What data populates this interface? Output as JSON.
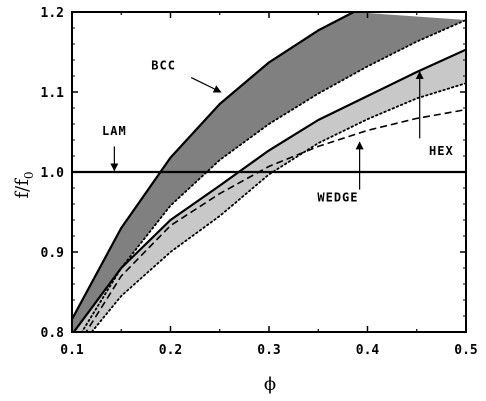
{
  "chart_data": {
    "type": "line",
    "xlabel": "ϕ",
    "ylabel_main": "f/f",
    "ylabel_sub": "0",
    "xlim": [
      0.1,
      0.5
    ],
    "ylim": [
      0.8,
      1.2
    ],
    "x_ticks": [
      0.1,
      0.2,
      0.3,
      0.4,
      0.5
    ],
    "x_tick_labels": [
      "0.1",
      "0.2",
      "0.3",
      "0.4",
      "0.5"
    ],
    "y_ticks": [
      0.8,
      0.9,
      1.0,
      1.1,
      1.2
    ],
    "y_tick_labels": [
      "0.8",
      "0.9",
      "1.0",
      "1.1",
      "1.2"
    ],
    "grid": false,
    "fill_colors": {
      "bcc": "#808080",
      "hex": "#c8c8c8"
    },
    "series": [
      {
        "key": "bcc_upper",
        "style": "solid",
        "x": [
          0.1,
          0.15,
          0.2,
          0.25,
          0.3,
          0.35,
          0.386
        ],
        "y": [
          0.816,
          0.93,
          1.018,
          1.085,
          1.137,
          1.177,
          1.2
        ]
      },
      {
        "key": "bcc_lower",
        "style": "dotted",
        "x": [
          0.1,
          0.15,
          0.2,
          0.25,
          0.3,
          0.35,
          0.4,
          0.45,
          0.5
        ],
        "y": [
          0.78,
          0.88,
          0.958,
          1.015,
          1.06,
          1.098,
          1.132,
          1.163,
          1.19
        ]
      },
      {
        "key": "hex_upper",
        "style": "solid",
        "x": [
          0.1,
          0.15,
          0.2,
          0.25,
          0.3,
          0.35,
          0.4,
          0.45,
          0.5
        ],
        "y": [
          0.797,
          0.88,
          0.94,
          0.983,
          1.027,
          1.065,
          1.095,
          1.125,
          1.153
        ]
      },
      {
        "key": "hex_lower",
        "style": "dotted",
        "x": [
          0.1,
          0.15,
          0.2,
          0.25,
          0.3,
          0.35,
          0.4,
          0.45,
          0.5
        ],
        "y": [
          0.77,
          0.845,
          0.9,
          0.945,
          0.997,
          1.036,
          1.066,
          1.092,
          1.111
        ]
      },
      {
        "key": "wedge",
        "style": "dashed",
        "x": [
          0.1,
          0.15,
          0.2,
          0.25,
          0.3,
          0.35,
          0.4,
          0.45,
          0.5
        ],
        "y": [
          0.772,
          0.87,
          0.933,
          0.973,
          1.007,
          1.032,
          1.052,
          1.067,
          1.078
        ]
      },
      {
        "key": "lam",
        "style": "solid",
        "x": [
          0.1,
          0.5
        ],
        "y": [
          1.0,
          1.0
        ]
      }
    ],
    "annotations": [
      {
        "key": "bcc",
        "text": "BCC",
        "label_at": [
          0.193,
          1.128
        ],
        "arrow_from": [
          0.221,
          1.118
        ],
        "arrow_to": [
          0.251,
          1.1
        ]
      },
      {
        "key": "lam",
        "text": "LAM",
        "label_at": [
          0.143,
          1.046
        ],
        "arrow_from": [
          0.143,
          1.032
        ],
        "arrow_to": [
          0.143,
          1.002
        ]
      },
      {
        "key": "hex",
        "text": "HEX",
        "label_at": [
          0.475,
          1.021
        ],
        "arrow_from": [
          0.453,
          1.042
        ],
        "arrow_to": [
          0.453,
          1.125
        ]
      },
      {
        "key": "wedge",
        "text": "WEDGE",
        "label_at": [
          0.37,
          0.963
        ],
        "arrow_from": [
          0.392,
          0.978
        ],
        "arrow_to": [
          0.392,
          1.037
        ]
      }
    ]
  }
}
